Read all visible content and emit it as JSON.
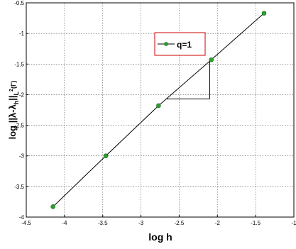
{
  "chart_data": {
    "type": "line",
    "xlabel": "log h",
    "ylabel": "log  ||λ-λ_h||_L²(Γ)",
    "ylabel_parts": {
      "main": "log  ||λ-λ",
      "sub_h": "h",
      "mid": "||",
      "sub_L": "L",
      "sup_2": "2",
      "paren": "(Γ)"
    },
    "xlim": [
      -4.5,
      -1
    ],
    "ylim": [
      -4,
      -0.5
    ],
    "x_ticks": [
      -4.5,
      -4,
      -3.5,
      -3,
      -2.5,
      -2,
      -1.5,
      -1
    ],
    "x_tick_labels": [
      "-4.5",
      "-4",
      "-3.5",
      "-3",
      "-2.5",
      "-2",
      "-1.5",
      "-1"
    ],
    "y_ticks": [
      -4,
      -3.5,
      -3,
      -2.5,
      -2,
      -1.5,
      -1,
      -0.5
    ],
    "y_tick_labels": [
      "-4",
      "-3.5",
      "-3",
      "-2.5",
      "-2",
      "-1.5",
      "-1",
      "-0.5"
    ],
    "grid": true,
    "legend_position": "top-center",
    "series": [
      {
        "name": "q=1",
        "color": "#000000",
        "marker_color": "#2e9e2e",
        "x": [
          -4.15,
          -3.46,
          -2.77,
          -2.08,
          -1.39
        ],
        "y": [
          -3.83,
          -3.0,
          -2.18,
          -1.43,
          -0.67
        ]
      }
    ],
    "slope_triangle": {
      "x": [
        -2.67,
        -2.1
      ],
      "y": [
        -2.07,
        -1.45
      ]
    }
  }
}
